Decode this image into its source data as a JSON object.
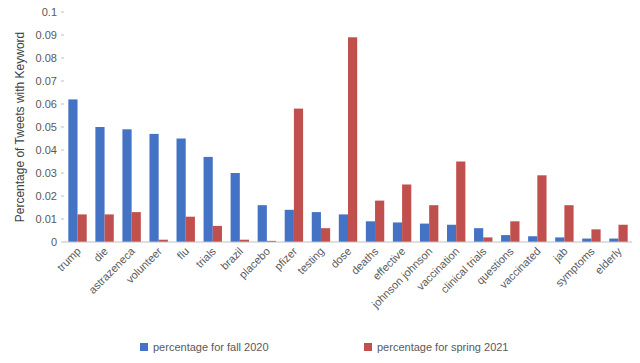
{
  "chart_data": {
    "type": "bar",
    "y_label": "Percentage of Tweets with Keyword",
    "categories": [
      "trump",
      "die",
      "astrazeneca",
      "volunteer",
      "flu",
      "trials",
      "brazil",
      "placebo",
      "pfizer",
      "testing",
      "dose",
      "deaths",
      "effective",
      "johnson johnson",
      "vaccination",
      "clinical trials",
      "questions",
      "vaccinated",
      "jab",
      "symptoms",
      "elderly"
    ],
    "series": [
      {
        "name": "percentage for fall 2020",
        "color": "#4472c4",
        "values": [
          0.062,
          0.05,
          0.049,
          0.047,
          0.045,
          0.037,
          0.03,
          0.016,
          0.014,
          0.013,
          0.012,
          0.009,
          0.0085,
          0.008,
          0.0075,
          0.006,
          0.003,
          0.0025,
          0.002,
          0.0015,
          0.0015
        ]
      },
      {
        "name": "percentage for spring 2021",
        "color": "#c0504d",
        "values": [
          0.012,
          0.012,
          0.013,
          0.001,
          0.011,
          0.007,
          0.001,
          0.0005,
          0.058,
          0.006,
          0.089,
          0.018,
          0.025,
          0.016,
          0.035,
          0.002,
          0.009,
          0.029,
          0.016,
          0.0055,
          0.0075
        ]
      }
    ],
    "ylim": [
      0,
      0.1
    ],
    "yticks": [
      0,
      0.01,
      0.02,
      0.03,
      0.04,
      0.05,
      0.06,
      0.07,
      0.08,
      0.09,
      0.1
    ],
    "grid": false,
    "legend": "bottom"
  }
}
